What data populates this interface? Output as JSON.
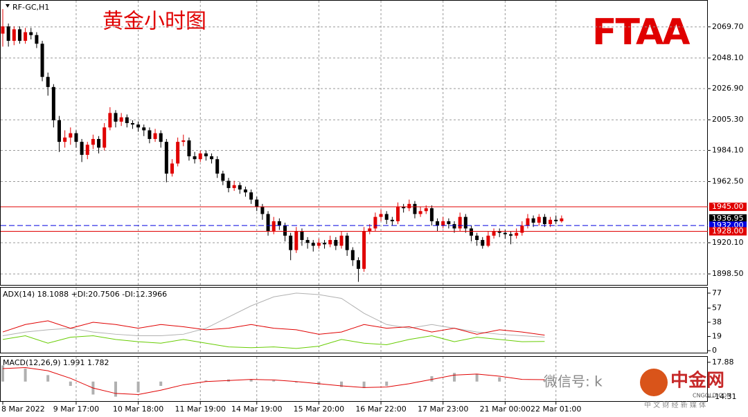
{
  "chart_data": [
    {
      "type": "candlestick",
      "symbol": "RF-GC,H1",
      "title": "黄金小时图",
      "up_color": "#e00000",
      "down_color": "#000000",
      "ylim": [
        1890.87,
        2087.82
      ],
      "yticks": [
        {
          "value": 2069.7,
          "label": "2069.70"
        },
        {
          "value": 2048.1,
          "label": "2048.10"
        },
        {
          "value": 2026.9,
          "label": "2026.90"
        },
        {
          "value": 2005.3,
          "label": "2005.30"
        },
        {
          "value": 1984.1,
          "label": "1984.10"
        },
        {
          "value": 1962.5,
          "label": "1962.50"
        },
        {
          "value": 1920.1,
          "label": "1920.10"
        },
        {
          "value": 1898.5,
          "label": "1898.50"
        }
      ],
      "levels": [
        {
          "value": 1945,
          "label": "1945.00",
          "color": "#e00000",
          "style": "solid"
        },
        {
          "value": 1936.95,
          "label": "1936.95",
          "color": "#000000",
          "style": "none"
        },
        {
          "value": 1932,
          "label": "1932.00",
          "color": "#0000e0",
          "style": "dashed"
        },
        {
          "value": 1928,
          "label": "1928.00",
          "color": "#e00000",
          "style": "solid"
        }
      ],
      "grid": true,
      "categories": [
        "8 Mar 2022",
        null,
        null,
        null,
        null,
        null,
        null,
        null,
        null,
        null,
        null,
        null,
        null,
        "9 Mar 17:00",
        null,
        null,
        null,
        null,
        null,
        null,
        null,
        null,
        null,
        null,
        "10 Mar 18:00",
        null,
        null,
        null,
        null,
        null,
        null,
        null,
        null,
        null,
        null,
        "11 Mar 19:00",
        null,
        null,
        null,
        null,
        null,
        null,
        null,
        null,
        null,
        "14 Mar 19:00",
        null,
        null,
        null,
        null,
        null,
        null,
        null,
        null,
        null,
        null,
        "15 Mar 20:00",
        null,
        null,
        null,
        null,
        null,
        null,
        null,
        null,
        null,
        null,
        "16 Mar 22:00",
        null,
        null,
        null,
        null,
        null,
        null,
        null,
        null,
        null,
        null,
        "17 Mar 23:00",
        null,
        null,
        null,
        null,
        null,
        null,
        null,
        null,
        null,
        null,
        "21 Mar 00:00",
        null,
        null,
        null,
        null,
        null,
        null,
        null,
        null,
        "22 Mar 01:00",
        null
      ],
      "candles": [
        [
          2065,
          2082,
          2056,
          2070
        ],
        [
          2070,
          2072,
          2056,
          2060
        ],
        [
          2060,
          2070,
          2057,
          2068
        ],
        [
          2068,
          2070,
          2058,
          2060
        ],
        [
          2060,
          2069,
          2058,
          2066
        ],
        [
          2066,
          2069,
          2061,
          2064
        ],
        [
          2064,
          2066,
          2055,
          2058
        ],
        [
          2058,
          2060,
          2032,
          2035
        ],
        [
          2035,
          2038,
          2022,
          2028
        ],
        [
          2028,
          2030,
          2000,
          2005
        ],
        [
          2005,
          2008,
          1983,
          1990
        ],
        [
          1990,
          1998,
          1986,
          1993
        ],
        [
          1993,
          2000,
          1988,
          1996
        ],
        [
          1996,
          1998,
          1986,
          1990
        ],
        [
          1990,
          1992,
          1976,
          1981
        ],
        [
          1981,
          1990,
          1978,
          1988
        ],
        [
          1988,
          1995,
          1985,
          1992
        ],
        [
          1992,
          1994,
          1982,
          1986
        ],
        [
          1986,
          2003,
          1984,
          2000
        ],
        [
          2000,
          2014,
          1998,
          2010
        ],
        [
          2010,
          2012,
          2000,
          2004
        ],
        [
          2004,
          2010,
          2001,
          2007
        ],
        [
          2007,
          2009,
          2000,
          2003
        ],
        [
          2003,
          2005,
          1999,
          2002
        ],
        [
          2002,
          2004,
          1997,
          2000
        ],
        [
          2000,
          2002,
          1994,
          1998
        ],
        [
          1998,
          2000,
          1989,
          1992
        ],
        [
          1992,
          1999,
          1990,
          1996
        ],
        [
          1996,
          1998,
          1986,
          1990
        ],
        [
          1990,
          1992,
          1962,
          1968
        ],
        [
          1968,
          1978,
          1966,
          1975
        ],
        [
          1975,
          1993,
          1973,
          1990
        ],
        [
          1990,
          1995,
          1987,
          1991
        ],
        [
          1991,
          1993,
          1977,
          1980
        ],
        [
          1980,
          1983,
          1975,
          1978
        ],
        [
          1978,
          1984,
          1976,
          1982
        ],
        [
          1982,
          1984,
          1977,
          1980
        ],
        [
          1980,
          1982,
          1975,
          1978
        ],
        [
          1978,
          1980,
          1965,
          1968
        ],
        [
          1968,
          1970,
          1960,
          1963
        ],
        [
          1963,
          1965,
          1955,
          1958
        ],
        [
          1958,
          1963,
          1956,
          1960
        ],
        [
          1960,
          1962,
          1954,
          1957
        ],
        [
          1957,
          1959,
          1952,
          1955
        ],
        [
          1955,
          1957,
          1947,
          1950
        ],
        [
          1950,
          1952,
          1942,
          1945
        ],
        [
          1945,
          1947,
          1936,
          1940
        ],
        [
          1940,
          1942,
          1925,
          1928
        ],
        [
          1928,
          1938,
          1926,
          1935
        ],
        [
          1935,
          1937,
          1929,
          1932
        ],
        [
          1932,
          1934,
          1921,
          1925
        ],
        [
          1925,
          1927,
          1908,
          1915
        ],
        [
          1915,
          1931,
          1913,
          1928
        ],
        [
          1928,
          1930,
          1918,
          1922
        ],
        [
          1922,
          1924,
          1916,
          1920
        ],
        [
          1920,
          1922,
          1914,
          1918
        ],
        [
          1918,
          1923,
          1916,
          1920
        ],
        [
          1920,
          1922,
          1916,
          1919
        ],
        [
          1919,
          1925,
          1917,
          1922
        ],
        [
          1922,
          1924,
          1915,
          1918
        ],
        [
          1918,
          1928,
          1916,
          1925
        ],
        [
          1925,
          1927,
          1911,
          1915
        ],
        [
          1915,
          1917,
          1904,
          1908
        ],
        [
          1908,
          1910,
          1893,
          1902
        ],
        [
          1902,
          1931,
          1900,
          1928
        ],
        [
          1928,
          1933,
          1926,
          1930
        ],
        [
          1930,
          1941,
          1928,
          1938
        ],
        [
          1938,
          1943,
          1935,
          1940
        ],
        [
          1940,
          1942,
          1933,
          1936
        ],
        [
          1936,
          1938,
          1932,
          1935
        ],
        [
          1935,
          1948,
          1933,
          1945
        ],
        [
          1945,
          1947,
          1941,
          1944
        ],
        [
          1944,
          1950,
          1942,
          1947
        ],
        [
          1947,
          1949,
          1937,
          1940
        ],
        [
          1940,
          1945,
          1938,
          1942
        ],
        [
          1942,
          1946,
          1940,
          1944
        ],
        [
          1944,
          1946,
          1932,
          1935
        ],
        [
          1935,
          1937,
          1928,
          1932
        ],
        [
          1932,
          1938,
          1930,
          1935
        ],
        [
          1935,
          1937,
          1930,
          1933
        ],
        [
          1933,
          1935,
          1927,
          1930
        ],
        [
          1930,
          1941,
          1928,
          1938
        ],
        [
          1938,
          1940,
          1927,
          1930
        ],
        [
          1930,
          1932,
          1921,
          1925
        ],
        [
          1925,
          1927,
          1918,
          1922
        ],
        [
          1922,
          1924,
          1916,
          1918
        ],
        [
          1918,
          1928,
          1917,
          1925
        ],
        [
          1925,
          1930,
          1923,
          1928
        ],
        [
          1928,
          1930,
          1924,
          1927
        ],
        [
          1927,
          1929,
          1923,
          1926
        ],
        [
          1926,
          1928,
          1919,
          1925
        ],
        [
          1925,
          1930,
          1923,
          1927
        ],
        [
          1927,
          1935,
          1925,
          1932
        ],
        [
          1932,
          1940,
          1930,
          1937
        ],
        [
          1937,
          1939,
          1931,
          1934
        ],
        [
          1934,
          1940,
          1932,
          1938
        ],
        [
          1938,
          1940,
          1931,
          1933
        ],
        [
          1933,
          1938,
          1931,
          1936
        ],
        [
          1936,
          1939,
          1933,
          1935
        ],
        [
          1935,
          1939,
          1934,
          1936.95
        ]
      ]
    },
    {
      "type": "line",
      "label": "ADX(14) 18.1088 +DI:20.7506 -DI:12.3966",
      "ylim": [
        -2.7,
        84.3
      ],
      "yticks": [
        77,
        57,
        38,
        19,
        0
      ],
      "series": [
        {
          "color": "#b0b0b0",
          "values": [
            20,
            25,
            28,
            30,
            25,
            22,
            20,
            20,
            22,
            30,
            45,
            60,
            72,
            77,
            75,
            70,
            50,
            35,
            30,
            35,
            30,
            25,
            22,
            20,
            18.1088
          ]
        },
        {
          "color": "#e00000",
          "values": [
            25,
            35,
            40,
            30,
            38,
            35,
            30,
            35,
            32,
            28,
            30,
            35,
            30,
            28,
            22,
            25,
            35,
            30,
            32,
            25,
            30,
            22,
            28,
            25,
            20.7506
          ]
        },
        {
          "color": "#66cc00",
          "values": [
            15,
            20,
            10,
            18,
            20,
            15,
            12,
            10,
            15,
            10,
            5,
            4,
            5,
            3,
            6,
            15,
            10,
            8,
            15,
            20,
            12,
            18,
            15,
            12,
            12.3966
          ]
        }
      ]
    },
    {
      "type": "macd",
      "label": "MACD(12,26,9) 1.991 1.782",
      "ylim": [
        -18.1,
        22.93
      ],
      "yticks": [
        17.88,
        -14.31
      ],
      "histogram": {
        "color": "#b0b0b0",
        "values": [
          15,
          12,
          6,
          -4,
          -12,
          -14,
          -10,
          -4,
          0,
          1,
          2,
          2,
          1,
          -1,
          -3,
          -5,
          -6,
          -4,
          0,
          5,
          8,
          7,
          4,
          0,
          1.991
        ]
      },
      "signal": {
        "color": "#e00000",
        "values": [
          12,
          13,
          10,
          3,
          -6,
          -11,
          -12,
          -8,
          -3,
          0,
          1,
          2,
          1.5,
          0,
          -2,
          -4,
          -5.5,
          -5,
          -2,
          2,
          6,
          7,
          5,
          2,
          1.782
        ]
      }
    }
  ],
  "overlay": {
    "logo": "FTAA",
    "wechat": "微信号: k",
    "site_logo": "中金网",
    "site_url": "CNGOLD.COM",
    "site_tagline": "中 文 财 经 新 媒 体"
  }
}
